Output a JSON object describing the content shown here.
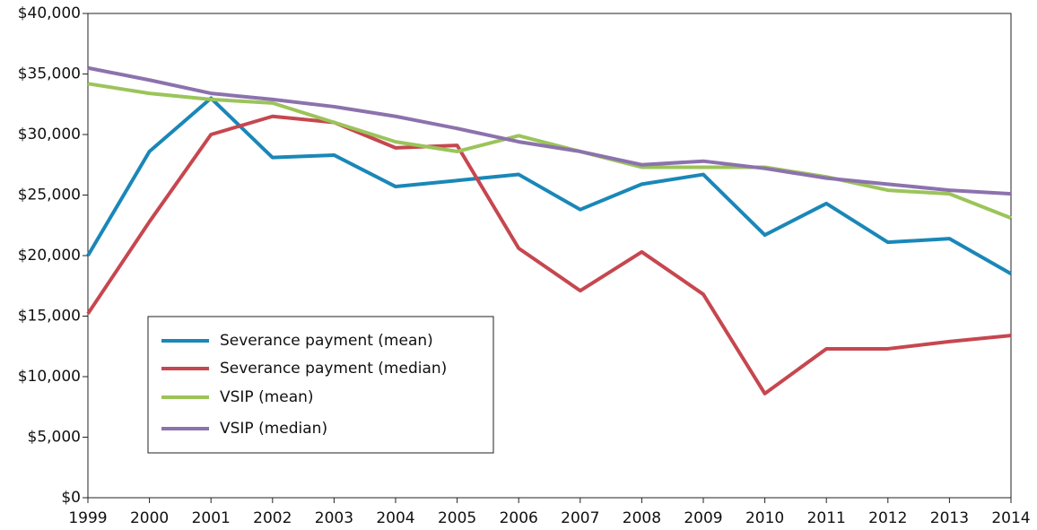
{
  "chart_data": {
    "type": "line",
    "x": [
      1999,
      2000,
      2001,
      2002,
      2003,
      2004,
      2005,
      2006,
      2007,
      2008,
      2009,
      2010,
      2011,
      2012,
      2013,
      2014
    ],
    "xlim": [
      1999,
      2014
    ],
    "xticks": [
      1999,
      2000,
      2001,
      2002,
      2003,
      2004,
      2005,
      2006,
      2007,
      2008,
      2009,
      2010,
      2011,
      2012,
      2013,
      2014
    ],
    "ylim": [
      0,
      40000
    ],
    "yticks": [
      {
        "value": 0,
        "label": "$0"
      },
      {
        "value": 5000,
        "label": "$5,000"
      },
      {
        "value": 10000,
        "label": "$10,000"
      },
      {
        "value": 15000,
        "label": "$15,000"
      },
      {
        "value": 20000,
        "label": "$20,000"
      },
      {
        "value": 25000,
        "label": "$25,000"
      },
      {
        "value": 30000,
        "label": "$30,000"
      },
      {
        "value": 35000,
        "label": "$35,000"
      },
      {
        "value": 40000,
        "label": "$40,000"
      }
    ],
    "series": [
      {
        "name": "Severance payment (mean)",
        "color": "#1a87b8",
        "values": [
          20000,
          28600,
          33000,
          28100,
          28300,
          25700,
          26200,
          26700,
          23800,
          25900,
          26700,
          21700,
          24300,
          21100,
          21400,
          18500
        ]
      },
      {
        "name": "Severance payment (median)",
        "color": "#c6474f",
        "values": [
          15200,
          22800,
          30000,
          31500,
          31000,
          28900,
          29100,
          20600,
          17100,
          20300,
          16800,
          8600,
          12300,
          12300,
          12900,
          13400
        ]
      },
      {
        "name": "VSIP (mean)",
        "color": "#9bc45a",
        "values": [
          34200,
          33400,
          32900,
          32600,
          31000,
          29400,
          28600,
          29900,
          28600,
          27300,
          27300,
          27300,
          26500,
          25400,
          25100,
          23100
        ]
      },
      {
        "name": "VSIP (median)",
        "color": "#8c72ad",
        "values": [
          35500,
          34500,
          33400,
          32900,
          32300,
          31500,
          30500,
          29400,
          28600,
          27500,
          27800,
          27200,
          26400,
          25900,
          25400,
          25100
        ]
      }
    ]
  }
}
